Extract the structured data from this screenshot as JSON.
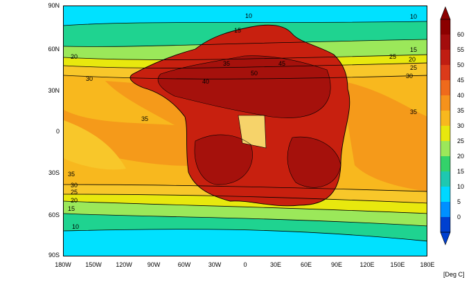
{
  "map": {
    "y_axis_labels": [
      "90N",
      "60N",
      "30N",
      "0",
      "30S",
      "60S",
      "90S"
    ],
    "x_axis_labels": [
      "180W",
      "150W",
      "120W",
      "90W",
      "60W",
      "30W",
      "0",
      "30E",
      "60E",
      "90E",
      "120E",
      "150E",
      "180E"
    ],
    "contour_labels": [
      "10",
      "15",
      "20",
      "25",
      "30",
      "35",
      "35",
      "30",
      "25",
      "20",
      "15",
      "10",
      "50",
      "45",
      "40",
      "35",
      "10",
      "15",
      "20",
      "25",
      "30",
      "35"
    ]
  },
  "colorbar": {
    "ticks": [
      "60",
      "55",
      "50",
      "45",
      "40",
      "35",
      "30",
      "25",
      "20",
      "15",
      "10",
      "5",
      "0"
    ],
    "colors": [
      "#8b0000",
      "#a30d0d",
      "#c01d12",
      "#db3a1a",
      "#ef6a1c",
      "#f6921c",
      "#f8b81e",
      "#e8e80e",
      "#9be85a",
      "#33d26a",
      "#1ec8b0",
      "#00d8ff",
      "#0090ff",
      "#0040d0"
    ],
    "unit": "[Deg C]"
  }
}
